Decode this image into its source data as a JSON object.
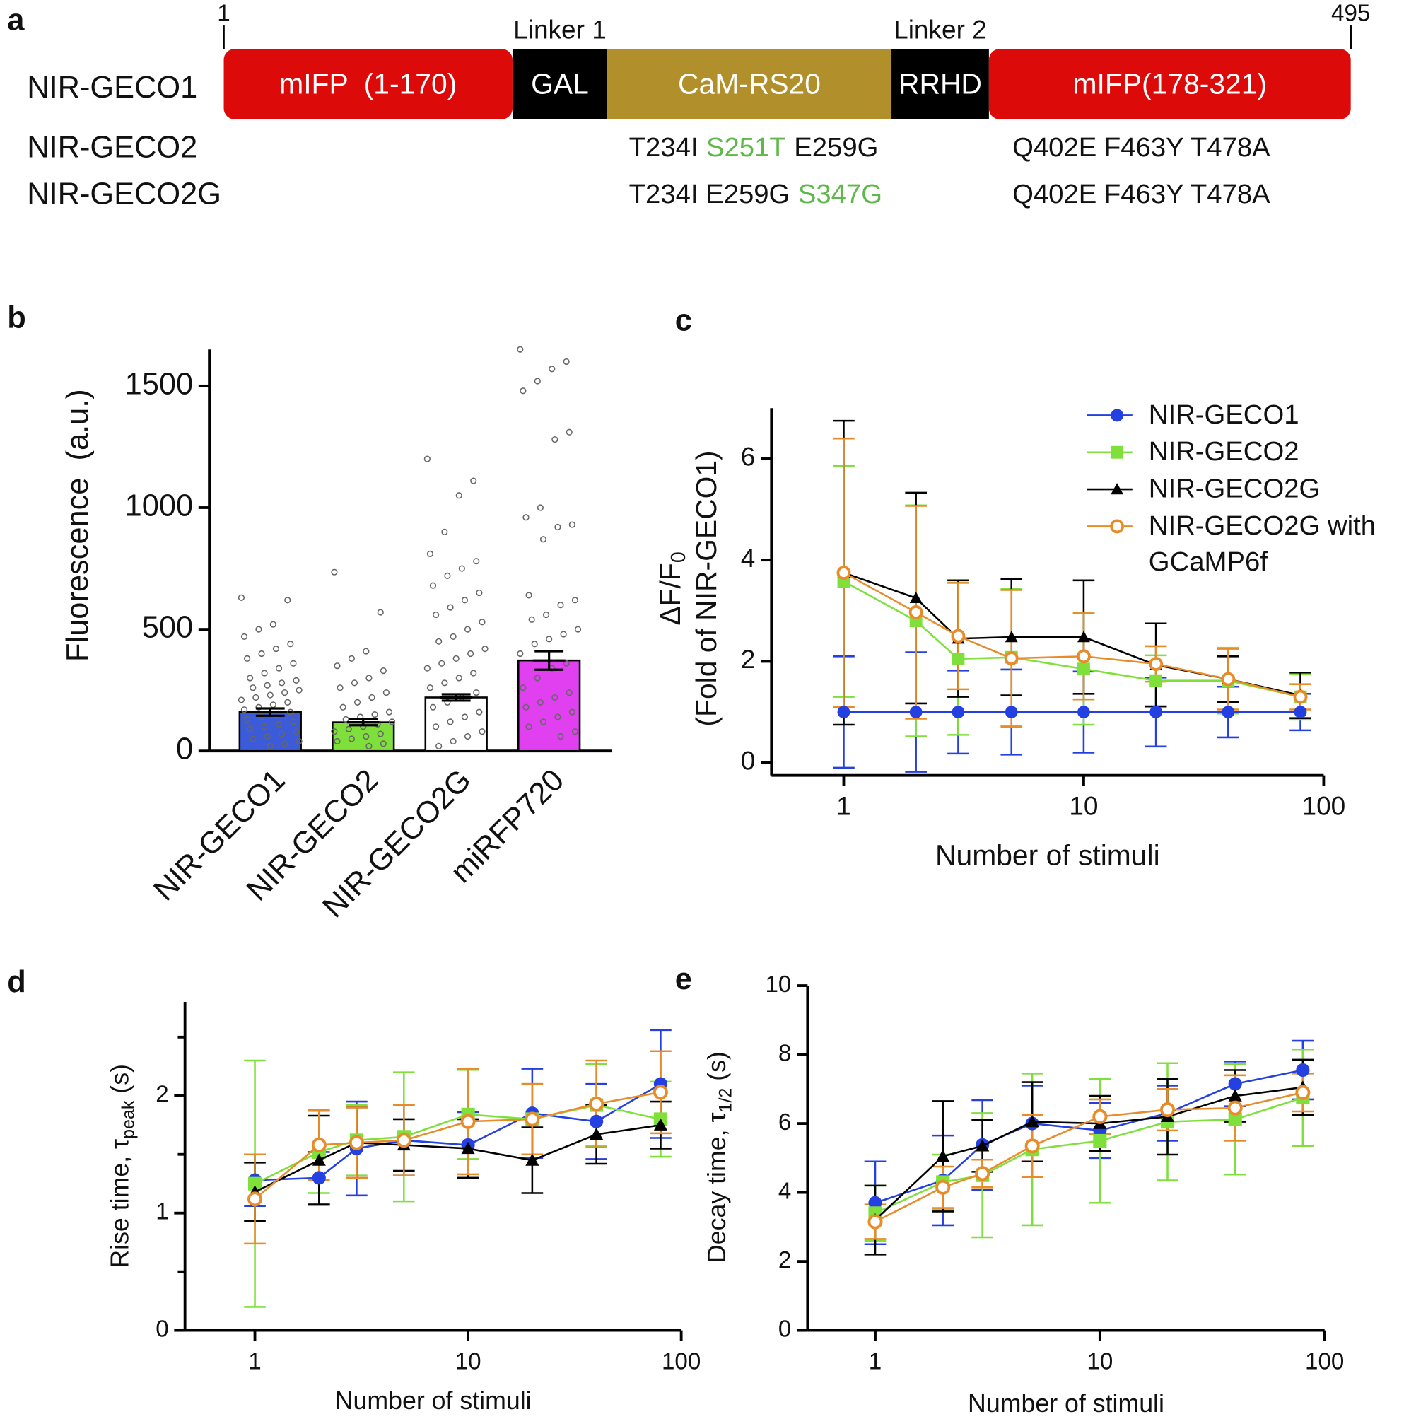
{
  "diagram": {
    "panel": "a",
    "start": "1",
    "end": "495",
    "linkers": [
      "Linker 1",
      "Linker 2"
    ],
    "segments": [
      {
        "label": "mIFP  (1-170)",
        "color": "#dd0a0a"
      },
      {
        "label": "GAL",
        "color": "#000000"
      },
      {
        "label": "CaM-RS20",
        "color": "#b18f2b"
      },
      {
        "label": "RRHD",
        "color": "#000000"
      },
      {
        "label": "mIFP(178-321)",
        "color": "#dd0a0a"
      }
    ],
    "constructs": [
      {
        "name": "NIR-GECO1"
      },
      {
        "name": "NIR-GECO2",
        "mutations": [
          [
            {
              "text": "T234I",
              "color": "#111111"
            },
            {
              "text": "S251T",
              "color": "#5fb84a"
            },
            {
              "text": "E259G",
              "color": "#111111"
            }
          ],
          [
            {
              "text": "Q402E F463Y T478A",
              "color": "#111111"
            }
          ]
        ]
      },
      {
        "name": "NIR-GECO2G",
        "mutations": [
          [
            {
              "text": "T234I E259G",
              "color": "#111111"
            },
            {
              "text": "S347G",
              "color": "#5fb84a"
            }
          ],
          [
            {
              "text": "Q402E F463Y T478A",
              "color": "#111111"
            }
          ]
        ]
      }
    ]
  },
  "chart_data": [
    {
      "type": "bar",
      "panel": "b",
      "ylabel": "Fluorescence  (a.u.)",
      "categories": [
        "NIR-GECO1",
        "NIR-GECO2",
        "NIR-GECO2G",
        "miRFP720"
      ],
      "values": [
        160,
        118,
        220,
        372
      ],
      "errors": [
        15,
        12,
        13,
        38
      ],
      "colors": [
        "#3b5bdb",
        "#7fe03c",
        "#ffffff",
        "#e040f0"
      ],
      "points": [
        [
          630,
          620,
          520,
          500,
          470,
          440,
          420,
          400,
          380,
          360,
          340,
          320,
          300,
          290,
          280,
          270,
          260,
          250,
          240,
          230,
          220,
          210,
          200,
          190,
          180,
          170,
          160,
          150,
          140,
          130,
          120,
          110,
          100,
          90,
          80,
          70,
          60,
          50,
          40,
          30,
          20
        ],
        [
          735,
          570,
          410,
          380,
          350,
          330,
          300,
          280,
          260,
          240,
          220,
          200,
          180,
          160,
          150,
          140,
          130,
          120,
          110,
          100,
          90,
          80,
          70,
          60,
          50,
          40,
          30,
          20
        ],
        [
          1200,
          1110,
          1050,
          900,
          810,
          780,
          750,
          720,
          680,
          650,
          620,
          590,
          560,
          530,
          500,
          470,
          450,
          420,
          400,
          380,
          360,
          340,
          320,
          300,
          280,
          260,
          240,
          220,
          200,
          180,
          160,
          140,
          120,
          100,
          80,
          60,
          40,
          20
        ],
        [
          1650,
          1600,
          1570,
          1520,
          1480,
          1310,
          1280,
          1000,
          960,
          930,
          920,
          870,
          640,
          620,
          600,
          560,
          540,
          500,
          480,
          460,
          440,
          400,
          360,
          340,
          300,
          260,
          240,
          220,
          200,
          180,
          160,
          140,
          120,
          100,
          80,
          60
        ]
      ],
      "ylim": [
        0,
        1650
      ],
      "yticks": [
        0,
        500,
        1000,
        1500
      ]
    },
    {
      "type": "line",
      "panel": "c",
      "xscale": "log",
      "legend": "upper right",
      "xlabel": "Number of stimuli",
      "ylabel": [
        {
          "text": "ΔF/F",
          "sub": "0"
        },
        {
          "text": "(Fold of NIR-GECO1)"
        }
      ],
      "x": [
        1,
        2,
        3,
        5,
        10,
        20,
        40,
        80
      ],
      "xlim": [
        0.5,
        100
      ],
      "xticks": [
        1,
        10,
        100
      ],
      "ylim": [
        -0.25,
        7
      ],
      "yticks": [
        0,
        2,
        4,
        6
      ],
      "series": [
        {
          "name": "NIR-GECO1",
          "color": "#2440e0",
          "marker": "circle",
          "values": [
            1,
            1,
            1,
            1,
            1,
            1,
            1,
            1
          ],
          "errors": [
            1.1,
            1.18,
            0.82,
            0.84,
            0.8,
            0.68,
            0.5,
            0.36
          ]
        },
        {
          "name": "NIR-GECO2",
          "color": "#7fe03c",
          "marker": "square",
          "values": [
            3.58,
            2.8,
            2.05,
            2.08,
            1.85,
            1.62,
            1.62,
            1.3
          ],
          "errors": [
            2.28,
            2.28,
            1.5,
            1.35,
            1.1,
            0.5,
            0.65,
            0.45
          ]
        },
        {
          "name": "NIR-GECO2G",
          "color": "#000000",
          "marker": "triangle",
          "values": [
            3.75,
            3.25,
            2.45,
            2.48,
            2.48,
            1.93,
            1.65,
            1.33
          ],
          "errors": [
            3.0,
            2.08,
            1.15,
            1.15,
            1.12,
            0.82,
            0.45,
            0.45
          ]
        },
        {
          "name": "NIR-GECO2G with GCaMP6f",
          "color": "#e88c2a",
          "marker": "open-circle",
          "values": [
            3.75,
            2.97,
            2.5,
            2.06,
            2.1,
            1.95,
            1.65,
            1.3
          ],
          "errors": [
            2.65,
            2.1,
            1.05,
            1.35,
            0.85,
            0.35,
            0.6,
            0.25
          ]
        }
      ]
    },
    {
      "type": "line",
      "panel": "d",
      "xscale": "log",
      "xlabel": "Number of stimuli",
      "ylabel": [
        {
          "text": "Rise time, τ",
          "sub": "peak",
          "tail": " (s)"
        }
      ],
      "x": [
        1,
        2,
        3,
        5,
        10,
        20,
        40,
        80
      ],
      "xlim": [
        0.47,
        100
      ],
      "xticks": [
        1,
        10,
        100
      ],
      "ylim": [
        0,
        2.8
      ],
      "yticks": [
        0,
        1,
        2
      ],
      "yminor": [
        0.5,
        1.5,
        2.5
      ],
      "series": [
        {
          "name": "NIR-GECO1",
          "color": "#2440e0",
          "marker": "circle",
          "values": [
            1.28,
            1.3,
            1.55,
            1.62,
            1.58,
            1.85,
            1.78,
            2.1
          ],
          "errors": [
            0.22,
            0.22,
            0.4,
            0.3,
            0.28,
            0.38,
            0.32,
            0.46
          ]
        },
        {
          "name": "NIR-GECO2",
          "color": "#7fe03c",
          "marker": "square",
          "values": [
            1.25,
            1.52,
            1.62,
            1.65,
            1.84,
            1.8,
            1.92,
            1.8
          ],
          "errors": [
            1.05,
            0.35,
            0.3,
            0.55,
            0.38,
            0.3,
            0.35,
            0.32
          ]
        },
        {
          "name": "NIR-GECO2G",
          "color": "#000000",
          "marker": "triangle",
          "values": [
            1.18,
            1.45,
            1.6,
            1.58,
            1.55,
            1.45,
            1.67,
            1.75
          ],
          "errors": [
            0.25,
            0.38,
            0.3,
            0.22,
            0.25,
            0.28,
            0.25,
            0.2
          ]
        },
        {
          "name": "NIR-GECO2G with GCaMP6f",
          "color": "#e88c2a",
          "marker": "open-circle",
          "values": [
            1.12,
            1.58,
            1.6,
            1.62,
            1.78,
            1.8,
            1.93,
            2.03
          ],
          "errors": [
            0.38,
            0.3,
            0.3,
            0.3,
            0.45,
            0.3,
            0.37,
            0.35
          ]
        }
      ]
    },
    {
      "type": "line",
      "panel": "e",
      "xscale": "log",
      "xlabel": "Number of stimuli",
      "ylabel": [
        {
          "text": "Decay time, τ",
          "sub": "1/2",
          "tail": " (s)"
        }
      ],
      "x": [
        1,
        2,
        3,
        5,
        10,
        20,
        40,
        80
      ],
      "xlim": [
        0.5,
        100
      ],
      "xticks": [
        1,
        10,
        100
      ],
      "ylim": [
        0,
        10
      ],
      "yticks": [
        0,
        2,
        4,
        6,
        8,
        10
      ],
      "series": [
        {
          "name": "NIR-GECO1",
          "color": "#2440e0",
          "marker": "circle",
          "values": [
            3.7,
            4.35,
            5.38,
            6.0,
            5.8,
            6.3,
            7.15,
            7.55
          ],
          "errors": [
            1.2,
            1.3,
            1.3,
            1.1,
            0.8,
            0.8,
            0.65,
            0.85
          ]
        },
        {
          "name": "NIR-GECO2",
          "color": "#7fe03c",
          "marker": "square",
          "values": [
            3.4,
            4.3,
            4.5,
            5.25,
            5.5,
            6.05,
            6.12,
            6.75
          ],
          "errors": [
            0.8,
            0.8,
            1.8,
            2.2,
            1.8,
            1.7,
            1.6,
            1.4
          ]
        },
        {
          "name": "NIR-GECO2G",
          "color": "#000000",
          "marker": "triangle",
          "values": [
            3.2,
            5.05,
            5.35,
            6.05,
            6.0,
            6.2,
            6.8,
            7.05
          ],
          "errors": [
            1.0,
            1.6,
            0.75,
            1.15,
            0.8,
            1.1,
            0.75,
            0.8
          ]
        },
        {
          "name": "NIR-GECO2G with GCaMP6f",
          "color": "#e88c2a",
          "marker": "open-circle",
          "values": [
            3.15,
            4.15,
            4.55,
            5.35,
            6.2,
            6.4,
            6.45,
            6.9
          ],
          "errors": [
            0.5,
            0.6,
            0.4,
            0.9,
            0.5,
            0.6,
            0.95,
            0.55
          ]
        }
      ]
    }
  ]
}
